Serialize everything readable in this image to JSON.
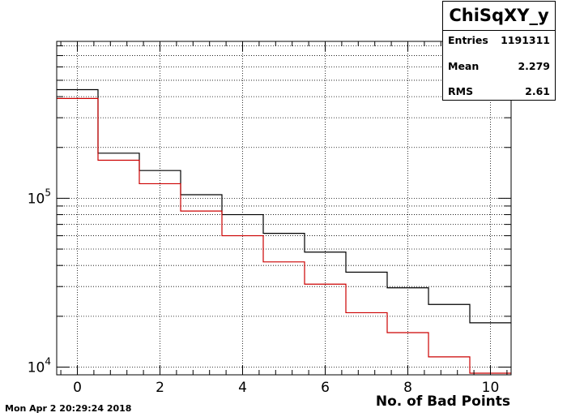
{
  "chart_data": {
    "type": "histogram",
    "xlabel": "No. of Bad Points",
    "ylabel": "",
    "xlim": [
      -0.5,
      10.5
    ],
    "ylim": [
      9000,
      850000
    ],
    "yscale": "log",
    "grid": true,
    "x_ticks": [
      "0",
      "2",
      "4",
      "6",
      "8",
      "10"
    ],
    "y_ticks": [
      {
        "base": "10",
        "exp": "4",
        "value": 10000
      },
      {
        "base": "10",
        "exp": "5",
        "value": 100000
      }
    ],
    "bin_edges": [
      -0.5,
      0.5,
      1.5,
      2.5,
      3.5,
      4.5,
      5.5,
      6.5,
      7.5,
      8.5,
      9.5,
      10.5
    ],
    "series": [
      {
        "color": "#000000",
        "values": [
          440000,
          185000,
          146000,
          105000,
          80000,
          62000,
          48000,
          36500,
          29500,
          23500,
          18300
        ]
      },
      {
        "color": "#cc0000",
        "values": [
          390000,
          168000,
          122000,
          84000,
          60000,
          42000,
          31000,
          21000,
          16000,
          11500,
          9200
        ]
      }
    ]
  },
  "stats": {
    "title": "ChiSqXY_y",
    "rows": [
      {
        "label": "Entries",
        "value": "1191311"
      },
      {
        "label": "Mean",
        "value": "2.279"
      },
      {
        "label": "RMS",
        "value": "2.61"
      }
    ]
  },
  "timestamp": "Mon Apr  2 20:29:24 2018"
}
